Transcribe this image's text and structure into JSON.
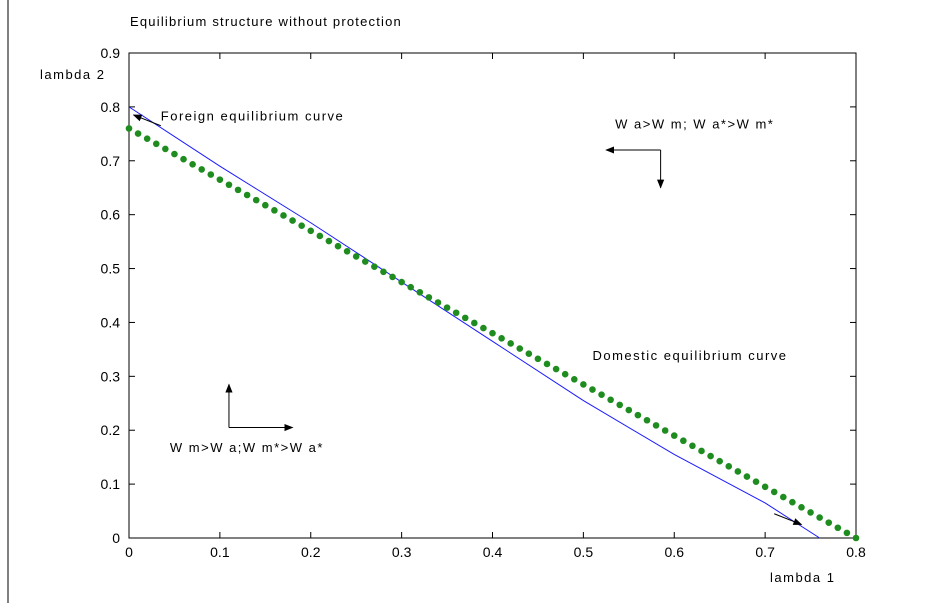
{
  "chart_data": {
    "type": "line",
    "title": "Equilibrium structure without protection",
    "xlabel": "lambda 1",
    "ylabel": "lambda 2",
    "xlim": [
      0,
      0.8
    ],
    "ylim": [
      0,
      0.9
    ],
    "xticks": [
      "0",
      "0.1",
      "0.2",
      "0.3",
      "0.4",
      "0.5",
      "0.6",
      "0.7",
      "0.8"
    ],
    "yticks": [
      "0",
      "0.1",
      "0.2",
      "0.3",
      "0.4",
      "0.5",
      "0.6",
      "0.7",
      "0.8",
      "0.9"
    ],
    "grid": false,
    "series": [
      {
        "name": "Foreign equilibrium curve",
        "style": "solid line",
        "color": "#1a1aff",
        "x": [
          0,
          0.1,
          0.2,
          0.3,
          0.4,
          0.5,
          0.6,
          0.7,
          0.76
        ],
        "y": [
          0.8,
          0.69,
          0.585,
          0.475,
          0.365,
          0.255,
          0.155,
          0.065,
          0.0
        ]
      },
      {
        "name": "Domestic equilibrium curve",
        "style": "dotted markers",
        "color": "#1e8c1e",
        "x": [
          0,
          0.8
        ],
        "y": [
          0.76,
          0.0
        ],
        "points": 81
      }
    ],
    "annotations": [
      {
        "text": "Foreign equilibrium curve",
        "x": 0.035,
        "y": 0.775
      },
      {
        "text": "W a>W m; W a*>W m*",
        "x": 0.535,
        "y": 0.76
      },
      {
        "text": "Domestic equilibrium curve",
        "x": 0.51,
        "y": 0.33
      },
      {
        "text": "W m>W a;W m*>W a*",
        "x": 0.045,
        "y": 0.16
      }
    ],
    "arrows": [
      {
        "from": [
          0.035,
          0.765
        ],
        "to": [
          0.005,
          0.785
        ],
        "style": "short"
      },
      {
        "from": [
          0.71,
          0.045
        ],
        "to": [
          0.74,
          0.025
        ],
        "style": "short"
      },
      {
        "from": [
          0.585,
          0.72
        ],
        "to": [
          0.525,
          0.72
        ],
        "style": "elbow-left"
      },
      {
        "from": [
          0.585,
          0.72
        ],
        "to": [
          0.585,
          0.65
        ],
        "style": "elbow-down"
      },
      {
        "from": [
          0.11,
          0.205
        ],
        "to": [
          0.11,
          0.285
        ],
        "style": "elbow-up"
      },
      {
        "from": [
          0.11,
          0.205
        ],
        "to": [
          0.18,
          0.205
        ],
        "style": "elbow-right"
      }
    ]
  }
}
